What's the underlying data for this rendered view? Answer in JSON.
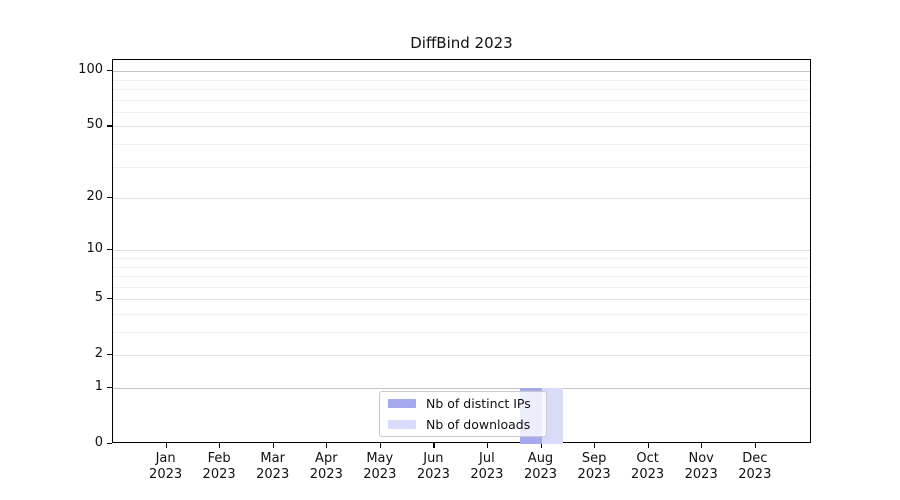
{
  "chart_data": {
    "type": "bar",
    "title": "DiffBind 2023",
    "categories": [
      "Jan",
      "Feb",
      "Mar",
      "Apr",
      "May",
      "Jun",
      "Jul",
      "Aug",
      "Sep",
      "Oct",
      "Nov",
      "Dec"
    ],
    "year": "2023",
    "series": [
      {
        "name": "Nb of distinct IPs",
        "color": "#a5a9ee",
        "values": [
          0,
          0,
          0,
          0,
          0,
          0,
          0,
          1,
          0,
          0,
          0,
          0
        ]
      },
      {
        "name": "Nb of downloads",
        "color": "#d8dcf9",
        "values": [
          0,
          0,
          0,
          0,
          0,
          0,
          0,
          1,
          0,
          0,
          0,
          0
        ]
      }
    ],
    "xlabel": "",
    "ylabel": "",
    "scale": "log1p",
    "ylim": [
      0,
      115
    ],
    "yticks": [
      0,
      1,
      2,
      5,
      10,
      20,
      50,
      100
    ],
    "minor_gridlines": [
      3,
      4,
      6,
      7,
      8,
      9,
      30,
      40,
      60,
      70,
      80,
      90
    ],
    "grid": true,
    "legend_position": "inside-bottom-center"
  }
}
